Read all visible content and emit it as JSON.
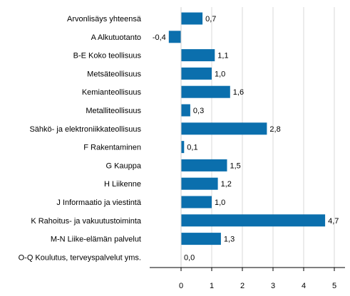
{
  "chart_data": {
    "type": "bar",
    "orientation": "horizontal",
    "categories": [
      "Arvonlisäys yhteensä",
      "A Alkutuotanto",
      "B-E Koko teollisuus",
      "Metsäteollisuus",
      "Kemianteollisuus",
      "Metalliteollisuus",
      "Sähkö- ja elektroniikkateollisuus",
      "F Rakentaminen",
      "G Kauppa",
      "H Liikenne",
      "J Informaatio ja viestintä",
      "K Rahoitus- ja vakuutustoiminta",
      "M-N Liike-elämän palvelut",
      "O-Q Koulutus, terveyspalvelut yms."
    ],
    "values": [
      0.7,
      -0.4,
      1.1,
      1.0,
      1.6,
      0.3,
      2.8,
      0.1,
      1.5,
      1.2,
      1.0,
      4.7,
      1.3,
      0.0
    ],
    "value_labels": [
      "0,7",
      "-0,4",
      "1,1",
      "1,0",
      "1,6",
      "0,3",
      "2,8",
      "0,1",
      "1,5",
      "1,2",
      "1,0",
      "4,7",
      "1,3",
      "0,0"
    ],
    "xlim": [
      -1,
      5
    ],
    "xticks": [
      0,
      1,
      2,
      3,
      4,
      5
    ],
    "xtick_labels": [
      "0",
      "1",
      "2",
      "3",
      "4",
      "5"
    ],
    "grid": "vertical",
    "bar_color": "#0b6fad",
    "grid_color": "#d9d9d9",
    "axis_color": "#000000",
    "title": "",
    "xlabel": "",
    "ylabel": ""
  }
}
